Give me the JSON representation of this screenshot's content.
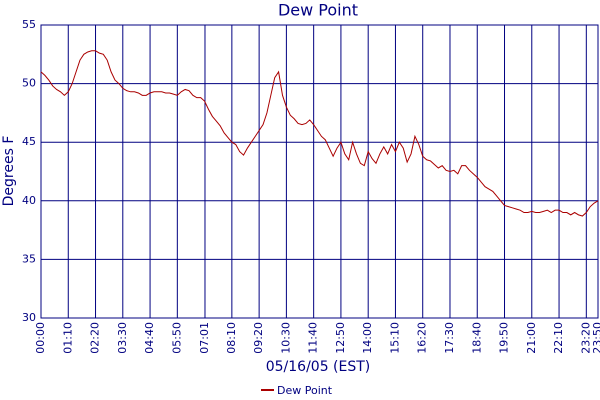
{
  "chart_data": {
    "type": "line",
    "title": "Dew Point",
    "xlabel": "05/16/05 (EST)",
    "ylabel": "Degrees F",
    "x": [
      "00:00",
      "00:10",
      "00:20",
      "00:30",
      "00:40",
      "00:50",
      "01:00",
      "01:10",
      "01:20",
      "01:30",
      "01:40",
      "01:50",
      "02:00",
      "02:10",
      "02:20",
      "02:30",
      "02:40",
      "02:50",
      "03:00",
      "03:10",
      "03:20",
      "03:30",
      "03:40",
      "03:50",
      "04:00",
      "04:10",
      "04:20",
      "04:30",
      "04:40",
      "04:50",
      "05:00",
      "05:10",
      "05:20",
      "05:30",
      "05:40",
      "05:50",
      "06:00",
      "06:10",
      "06:20",
      "06:30",
      "06:40",
      "06:50",
      "07:00",
      "07:10",
      "07:20",
      "07:30",
      "07:40",
      "07:50",
      "08:00",
      "08:10",
      "08:20",
      "08:30",
      "08:40",
      "08:50",
      "09:00",
      "09:10",
      "09:20",
      "09:30",
      "09:40",
      "09:50",
      "10:00",
      "10:10",
      "10:20",
      "10:30",
      "10:40",
      "10:50",
      "11:00",
      "11:10",
      "11:20",
      "11:30",
      "11:40",
      "11:50",
      "12:00",
      "12:10",
      "12:20",
      "12:30",
      "12:40",
      "12:50",
      "13:00",
      "13:10",
      "13:20",
      "13:30",
      "13:40",
      "13:50",
      "14:00",
      "14:10",
      "14:20",
      "14:30",
      "14:40",
      "14:50",
      "15:00",
      "15:10",
      "15:20",
      "15:30",
      "15:40",
      "15:50",
      "16:00",
      "16:10",
      "16:20",
      "16:30",
      "16:40",
      "16:50",
      "17:00",
      "17:10",
      "17:20",
      "17:30",
      "17:40",
      "17:50",
      "18:00",
      "18:10",
      "18:20",
      "18:30",
      "18:40",
      "18:50",
      "19:00",
      "19:10",
      "19:20",
      "19:30",
      "19:40",
      "19:50",
      "20:00",
      "20:10",
      "20:20",
      "20:30",
      "20:40",
      "20:50",
      "21:00",
      "21:10",
      "21:20",
      "21:30",
      "21:40",
      "21:50",
      "22:00",
      "22:10",
      "22:20",
      "22:30",
      "22:40",
      "22:50",
      "23:00",
      "23:10",
      "23:20",
      "23:30",
      "23:40",
      "23:50"
    ],
    "series": [
      {
        "name": "Dew Point",
        "color": "#aa0000",
        "values": [
          51.0,
          50.7,
          50.3,
          49.8,
          49.5,
          49.3,
          49.0,
          49.3,
          50.0,
          51.0,
          52.0,
          52.5,
          52.7,
          52.8,
          52.8,
          52.6,
          52.5,
          52.0,
          51.0,
          50.3,
          50.0,
          49.6,
          49.4,
          49.3,
          49.3,
          49.2,
          49.0,
          49.0,
          49.2,
          49.3,
          49.3,
          49.3,
          49.2,
          49.2,
          49.1,
          49.0,
          49.3,
          49.5,
          49.4,
          49.0,
          48.8,
          48.8,
          48.5,
          47.8,
          47.2,
          46.8,
          46.4,
          45.8,
          45.4,
          45.0,
          44.8,
          44.2,
          43.9,
          44.5,
          45.0,
          45.5,
          46.0,
          46.5,
          47.5,
          49.0,
          50.5,
          51.0,
          49.0,
          48.0,
          47.3,
          47.0,
          46.6,
          46.5,
          46.6,
          46.9,
          46.5,
          46.0,
          45.5,
          45.2,
          44.5,
          43.8,
          44.5,
          45.0,
          44.0,
          43.5,
          45.0,
          44.0,
          43.2,
          43.0,
          44.2,
          43.6,
          43.2,
          44.0,
          44.6,
          44.0,
          44.8,
          44.2,
          45.0,
          44.5,
          43.3,
          44.0,
          45.5,
          44.8,
          43.8,
          43.5,
          43.4,
          43.1,
          42.8,
          43.0,
          42.6,
          42.5,
          42.6,
          42.3,
          43.0,
          43.0,
          42.6,
          42.3,
          42.0,
          41.6,
          41.2,
          41.0,
          40.8,
          40.4,
          40.0,
          39.6,
          39.5,
          39.4,
          39.3,
          39.2,
          39.0,
          39.0,
          39.1,
          39.0,
          39.0,
          39.1,
          39.2,
          39.0,
          39.2,
          39.2,
          39.0,
          39.0,
          38.8,
          39.0,
          38.8,
          38.7,
          39.0,
          39.5,
          39.8,
          40.0
        ]
      }
    ],
    "xlim": [
      "00:00",
      "23:50"
    ],
    "xticks": [
      "00:00",
      "01:10",
      "02:20",
      "03:30",
      "04:40",
      "05:50",
      "07:01",
      "08:10",
      "09:20",
      "10:30",
      "11:40",
      "12:50",
      "14:00",
      "15:10",
      "16:20",
      "17:30",
      "18:40",
      "19:50",
      "21:00",
      "22:10",
      "23:20",
      "23:50"
    ],
    "ylim": [
      30,
      55
    ],
    "yticks": [
      30,
      35,
      40,
      45,
      50,
      55
    ],
    "grid": true,
    "legend": "bottom"
  }
}
